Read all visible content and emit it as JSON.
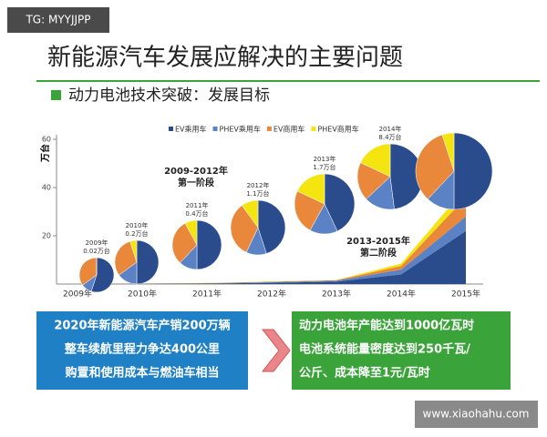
{
  "badge": "TG: MYYJJPP",
  "title": "新能源汽车发展应解决的主要问题",
  "subtitle": "动力电池技术突破：发展目标",
  "chart_data": {
    "type": "area",
    "stacked": true,
    "y_label": "万台",
    "categories": [
      "2009年",
      "2010年",
      "2011年",
      "2012年",
      "2013年",
      "2014年",
      "2015年"
    ],
    "ylim": [
      0,
      60
    ],
    "yticks": [
      20,
      40,
      60
    ],
    "series": [
      {
        "name": "EV乘用车",
        "color": "#2b4c8c",
        "values": [
          0.01,
          0.1,
          0.2,
          0.5,
          1,
          4,
          22
        ]
      },
      {
        "name": "PHEV乘用车",
        "color": "#5b82c4",
        "values": [
          0,
          0.05,
          0.1,
          0.3,
          0.4,
          2,
          6
        ]
      },
      {
        "name": "EV商用车",
        "color": "#e9873a",
        "values": [
          0,
          0.05,
          0.1,
          0.2,
          0.2,
          1.5,
          8
        ]
      },
      {
        "name": "PHEV商用车",
        "color": "#f4e410",
        "values": [
          0,
          0,
          0.05,
          0.1,
          0.1,
          1,
          4
        ]
      }
    ],
    "annotations": [
      [
        "2009-2012年",
        "第一阶段"
      ],
      [
        "2013-2015年",
        "第二阶段"
      ]
    ],
    "pies": [
      {
        "label": [
          "2009年",
          "0.02万台"
        ],
        "values": [
          55,
          10,
          35,
          0
        ]
      },
      {
        "label": [
          "2010年",
          "0.2万台"
        ],
        "values": [
          50,
          15,
          30,
          5
        ]
      },
      {
        "label": [
          "2011年",
          "0.4万台"
        ],
        "values": [
          50,
          12,
          30,
          8
        ]
      },
      {
        "label": [
          "2012年",
          "1.1万台"
        ],
        "values": [
          45,
          12,
          33,
          10
        ]
      },
      {
        "label": [
          "2013年",
          "1.7万台"
        ],
        "values": [
          43,
          15,
          24,
          18
        ]
      },
      {
        "label": [
          "2014年",
          "8.4万台"
        ],
        "values": [
          48,
          15,
          19,
          18
        ]
      },
      {
        "label": null,
        "values": [
          50,
          12,
          33,
          5
        ]
      }
    ]
  },
  "left_box": [
    "2020年新能源汽车产销200万辆",
    "整车续航里程力争达400公里",
    "购置和使用成本与燃油车相当"
  ],
  "right_box": [
    "动力电池年产能达到1000亿瓦时",
    "电池系统能量密度达到250千瓦/",
    "公斤、成本降至1元/瓦时"
  ],
  "watermark": "www.xiaohahu.com"
}
